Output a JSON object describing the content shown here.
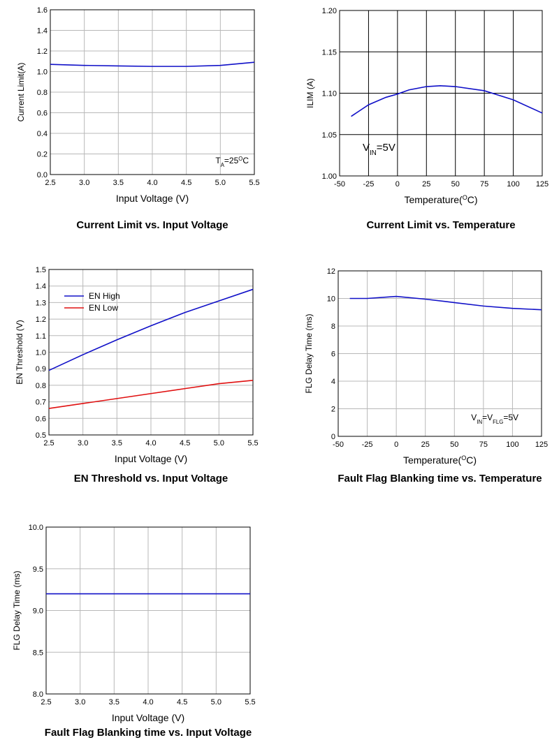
{
  "chart_data": [
    {
      "type": "line",
      "title": "Current Limit vs. Input Voltage",
      "xlabel": "Input Voltage (V)",
      "ylabel": "Current Limit(A)",
      "x": [
        2.5,
        3.0,
        3.5,
        4.0,
        4.5,
        5.0,
        5.5
      ],
      "series": [
        {
          "name": "Current Limit",
          "color": "#1010c8",
          "values": [
            1.07,
            1.06,
            1.055,
            1.05,
            1.05,
            1.06,
            1.09
          ]
        }
      ],
      "xlim": [
        2.5,
        5.5
      ],
      "ylim": [
        0,
        1.6
      ],
      "xticks": [
        2.5,
        {
          "value": 3,
          "label": "3.0"
        },
        3.5,
        {
          "value": 4,
          "label": "4.0"
        },
        4.5,
        {
          "value": 5,
          "label": "5.0"
        },
        5.5
      ],
      "yticks": [
        {
          "value": 0,
          "label": "0.0"
        },
        0.2,
        0.4,
        0.6,
        0.8,
        {
          "value": 1,
          "label": "1.0"
        },
        1.2,
        1.4,
        1.6
      ],
      "grid": true,
      "grid_color": "#b8b8b8",
      "annotation": [
        {
          "text": "T"
        },
        {
          "text": "A",
          "script": "sub"
        },
        {
          "text": "=25"
        },
        {
          "text": "O",
          "script": "super"
        },
        {
          "text": "C"
        }
      ]
    },
    {
      "type": "line",
      "title": "Current Limit vs. Temperature",
      "xlabel": [
        {
          "text": "Temperature("
        },
        {
          "text": "O",
          "script": "super"
        },
        {
          "text": "C)"
        }
      ],
      "ylabel": "ILIM (A)",
      "x": [
        -40,
        -25,
        -10,
        0,
        10,
        25,
        37,
        50,
        75,
        100,
        125
      ],
      "series": [
        {
          "name": "ILIM",
          "color": "#1010c8",
          "values": [
            1.072,
            1.086,
            1.095,
            1.099,
            1.104,
            1.108,
            1.109,
            1.108,
            1.103,
            1.092,
            1.076
          ]
        }
      ],
      "xlim": [
        -50,
        125
      ],
      "ylim": [
        1.0,
        1.2
      ],
      "xticks": [
        -50,
        -25,
        0,
        25,
        50,
        75,
        100,
        125
      ],
      "yticks": [
        {
          "value": 1,
          "label": "1.00"
        },
        1.05,
        {
          "value": 1.1,
          "label": "1.10"
        },
        1.15,
        {
          "value": 1.2,
          "label": "1.20"
        }
      ],
      "grid": true,
      "grid_color": "#000000",
      "annotation": [
        {
          "text": "V"
        },
        {
          "text": "IN",
          "script": "sub"
        },
        {
          "text": "=5V"
        }
      ]
    },
    {
      "type": "line",
      "title": "EN Threshold vs. Input Voltage",
      "xlabel": "Input Voltage (V)",
      "ylabel": "EN Threshold (V)",
      "x": [
        2.5,
        3.0,
        3.5,
        4.0,
        4.5,
        5.0,
        5.5
      ],
      "series": [
        {
          "name": "EN High",
          "color": "#1010c8",
          "values": [
            0.89,
            0.985,
            1.075,
            1.16,
            1.24,
            1.31,
            1.38
          ]
        },
        {
          "name": "EN Low",
          "color": "#e01010",
          "values": [
            0.66,
            0.69,
            0.72,
            0.75,
            0.78,
            0.81,
            0.83
          ]
        }
      ],
      "xlim": [
        2.5,
        5.5
      ],
      "ylim": [
        0.5,
        1.5
      ],
      "xticks": [
        2.5,
        {
          "value": 3,
          "label": "3.0"
        },
        3.5,
        {
          "value": 4,
          "label": "4.0"
        },
        4.5,
        {
          "value": 5,
          "label": "5.0"
        },
        5.5
      ],
      "yticks": [
        0.5,
        0.6,
        0.7,
        0.8,
        0.9,
        {
          "value": 1,
          "label": "1.0"
        },
        1.1,
        1.2,
        1.3,
        1.4,
        1.5
      ],
      "grid": true,
      "grid_color": "#b8b8b8",
      "legend": "upper left"
    },
    {
      "type": "line",
      "title": "Fault Flag Blanking time vs. Temperature",
      "xlabel": [
        {
          "text": "Temperature("
        },
        {
          "text": "O",
          "script": "super"
        },
        {
          "text": "C)"
        }
      ],
      "ylabel": "FLG Delay Time (ms)",
      "x": [
        -40,
        -25,
        0,
        25,
        50,
        75,
        100,
        125
      ],
      "series": [
        {
          "name": "FLG Delay Time",
          "color": "#1010c8",
          "values": [
            10.0,
            10.0,
            10.15,
            9.95,
            9.7,
            9.45,
            9.28,
            9.18
          ]
        }
      ],
      "xlim": [
        -50,
        125
      ],
      "ylim": [
        0,
        12
      ],
      "xticks": [
        -50,
        -25,
        0,
        25,
        50,
        75,
        100,
        125
      ],
      "yticks": [
        0,
        2,
        4,
        6,
        8,
        10,
        12
      ],
      "grid": true,
      "grid_color": "#b8b8b8",
      "annotation": [
        {
          "text": "V"
        },
        {
          "text": "IN",
          "script": "sub"
        },
        {
          "text": "=V"
        },
        {
          "text": "FLG",
          "script": "sub"
        },
        {
          "text": "=5V"
        }
      ]
    },
    {
      "type": "line",
      "title": "Fault Flag Blanking time vs. Input Voltage",
      "xlabel": "Input Voltage (V)",
      "ylabel": "FLG Delay Time (ms)",
      "x": [
        2.5,
        5.5
      ],
      "series": [
        {
          "name": "FLG Delay Time",
          "color": "#1010c8",
          "values": [
            9.2,
            9.2
          ]
        }
      ],
      "xlim": [
        2.5,
        5.5
      ],
      "ylim": [
        8,
        10
      ],
      "xticks": [
        2.5,
        {
          "value": 3,
          "label": "3.0"
        },
        3.5,
        {
          "value": 4,
          "label": "4.0"
        },
        4.5,
        {
          "value": 5,
          "label": "5.0"
        },
        5.5
      ],
      "yticks": [
        {
          "value": 8,
          "label": "8.0"
        },
        8.5,
        {
          "value": 9,
          "label": "9.0"
        },
        9.5,
        {
          "value": 10,
          "label": "10.0"
        }
      ],
      "grid": true,
      "grid_color": "#b8b8b8"
    }
  ]
}
